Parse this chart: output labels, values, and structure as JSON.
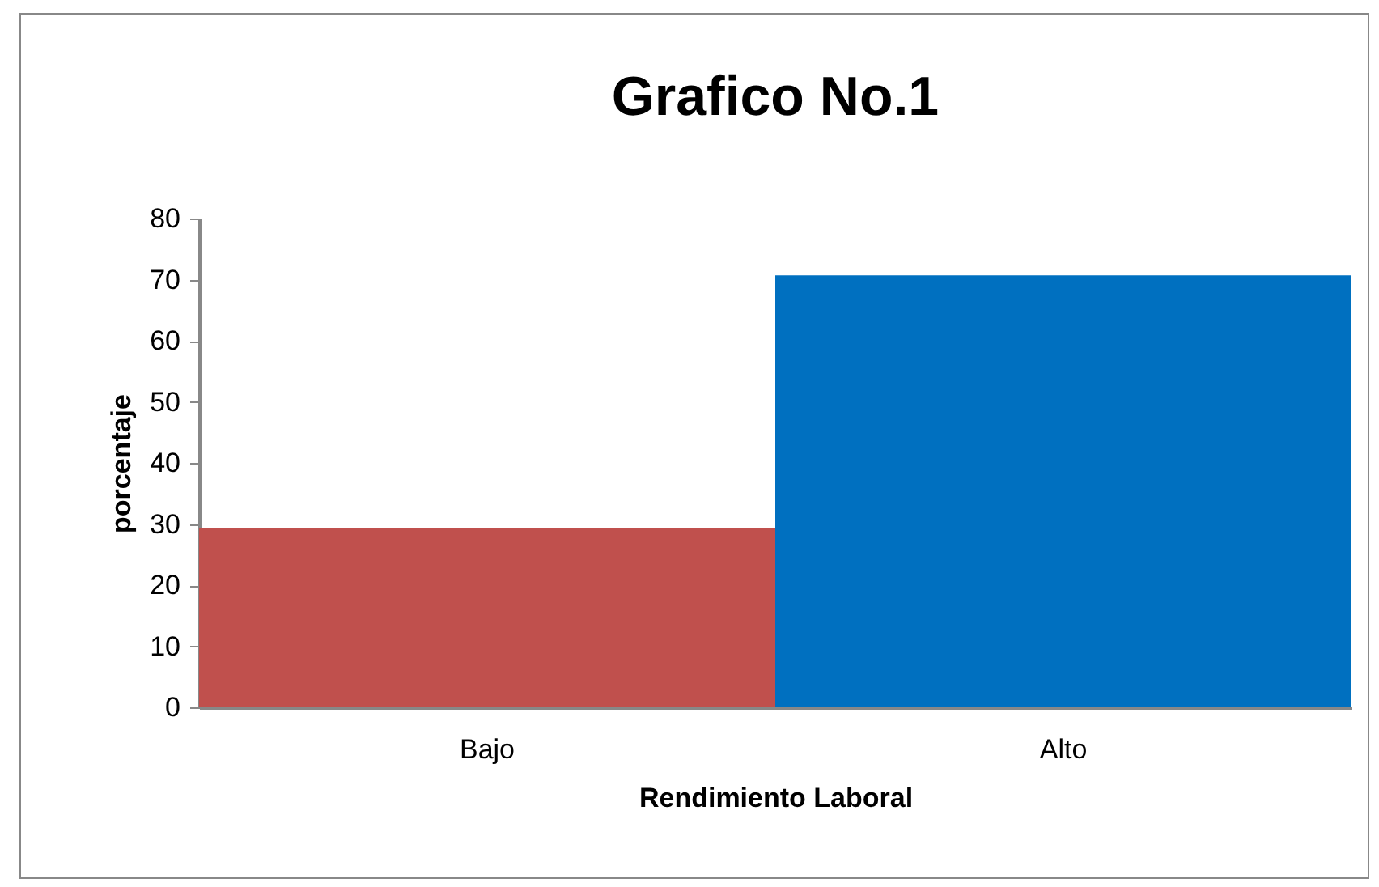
{
  "chart_data": {
    "type": "bar",
    "title": "Grafico No.1",
    "xlabel": "Rendimiento Laboral",
    "ylabel": "porcentaje",
    "categories": [
      "Bajo",
      "Alto"
    ],
    "values": [
      29.3,
      70.7
    ],
    "colors": [
      "#c0504d",
      "#0070c0"
    ],
    "ylim": [
      0,
      80
    ],
    "yticks": [
      0,
      10,
      20,
      30,
      40,
      50,
      60,
      70,
      80
    ]
  }
}
